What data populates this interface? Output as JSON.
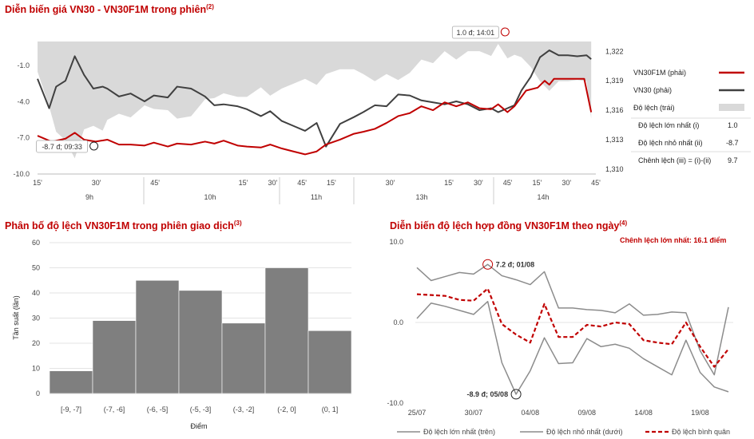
{
  "titles": {
    "intraday": "Diễn biến giá VN30 - VN30F1M trong phiên",
    "intraday_note": "(2)",
    "distribution": "Phân bố độ lệch VN30F1M trong phiên giao dịch",
    "distribution_note": "(3)",
    "daily": "Diễn biến độ lệch hợp đồng VN30F1M theo ngày",
    "daily_note": "(4)"
  },
  "intraday_stats": {
    "max_label": "Độ lệch lớn nhất (i)",
    "max_value": "1.0",
    "min_label": "Độ lệch nhỏ nhất (ii)",
    "min_value": "-8.7",
    "range_label": "Chênh lệch (iii) = (i)-(ii)",
    "range_value": "9.7"
  },
  "daily_max_spread": "Chênh lệch lớn nhất: 16.1 điểm",
  "colors": {
    "title": "#c00000",
    "futures": "#c00000",
    "index": "#404040",
    "basis_area": "#d9d9d9",
    "bars": "#7f7f7f",
    "range_lines": "#8c8c8c"
  },
  "chart_data": [
    {
      "type": "line",
      "title": "Diễn biến giá VN30 - VN30F1M trong phiên",
      "y_left": {
        "ticks": [
          "-1.0",
          "-4.0",
          "-7.0",
          "-10.0"
        ],
        "range": [
          -10,
          1
        ]
      },
      "y_right": {
        "ticks": [
          "1,322",
          "1,319",
          "1,316",
          "1,313",
          "1,310"
        ],
        "range": [
          1309.5,
          1323
        ]
      },
      "x_minute_ticks": [
        "15'",
        "30'",
        "45'",
        "15'",
        "30'",
        "45'",
        "15'",
        "30'",
        "15'",
        "30'",
        "45'",
        "15'",
        "30'",
        "45'"
      ],
      "x_hour_labels": [
        "9h",
        "10h",
        "11h",
        "13h",
        "14h"
      ],
      "x_range": [
        0,
        240
      ],
      "series": [
        {
          "name": "VN30F1M (phải)",
          "axis": "right",
          "x": [
            0,
            6,
            12,
            16,
            20,
            25,
            30,
            35,
            40,
            46,
            50,
            56,
            60,
            66,
            72,
            76,
            80,
            86,
            90,
            96,
            100,
            105,
            110,
            115,
            120,
            124,
            130,
            136,
            140,
            145,
            150,
            155,
            160,
            165,
            170,
            175,
            180,
            185,
            190,
            195,
            198,
            202,
            205,
            210,
            215,
            218,
            220,
            222,
            225,
            230,
            235,
            238
          ],
          "y": [
            1313.4,
            1312.8,
            1313.1,
            1313.7,
            1313.0,
            1312.8,
            1313.0,
            1312.5,
            1312.5,
            1312.4,
            1312.7,
            1312.3,
            1312.6,
            1312.5,
            1312.8,
            1312.6,
            1312.9,
            1312.4,
            1312.3,
            1312.2,
            1312.5,
            1312.1,
            1311.8,
            1311.5,
            1311.8,
            1312.5,
            1313.0,
            1313.6,
            1313.8,
            1314.1,
            1314.7,
            1315.4,
            1315.7,
            1316.4,
            1316.0,
            1316.8,
            1316.4,
            1316.8,
            1316.2,
            1316.1,
            1316.6,
            1315.8,
            1316.4,
            1318.0,
            1318.3,
            1319.0,
            1318.6,
            1319.2,
            1319.2,
            1319.2,
            1319.2,
            1315.8
          ]
        },
        {
          "name": "VN30 (phải)",
          "axis": "right",
          "x": [
            0,
            5,
            8,
            12,
            16,
            20,
            24,
            28,
            30,
            35,
            40,
            46,
            50,
            56,
            60,
            66,
            72,
            76,
            80,
            86,
            90,
            96,
            100,
            105,
            110,
            115,
            120,
            124,
            130,
            136,
            140,
            145,
            150,
            155,
            160,
            165,
            170,
            175,
            180,
            185,
            190,
            195,
            198,
            202,
            205,
            208,
            212,
            216,
            220,
            224,
            228,
            232,
            236,
            238
          ],
          "y": [
            1319.2,
            1316.2,
            1318.4,
            1319.0,
            1321.5,
            1319.6,
            1318.2,
            1318.4,
            1318.2,
            1317.4,
            1317.7,
            1316.9,
            1317.5,
            1317.3,
            1318.4,
            1318.2,
            1317.4,
            1316.5,
            1316.6,
            1316.4,
            1316.1,
            1315.4,
            1315.9,
            1314.9,
            1314.4,
            1313.9,
            1314.7,
            1312.3,
            1314.6,
            1315.3,
            1315.8,
            1316.5,
            1316.4,
            1317.6,
            1317.5,
            1317.0,
            1316.8,
            1316.6,
            1316.9,
            1316.6,
            1316.0,
            1316.2,
            1315.8,
            1316.2,
            1316.5,
            1318.0,
            1319.4,
            1321.4,
            1322.1,
            1321.6,
            1321.6,
            1321.5,
            1321.6,
            1321.2
          ]
        },
        {
          "name": "Độ lệch (trái)",
          "axis": "left",
          "kind": "area",
          "x": [
            0,
            5,
            8,
            12,
            16,
            20,
            24,
            28,
            30,
            35,
            40,
            46,
            50,
            56,
            60,
            66,
            72,
            76,
            80,
            86,
            90,
            96,
            100,
            105,
            110,
            115,
            120,
            124,
            130,
            136,
            140,
            145,
            150,
            155,
            160,
            165,
            170,
            175,
            180,
            185,
            190,
            195,
            198,
            202,
            205,
            208,
            212,
            216,
            220,
            224,
            228,
            232,
            236,
            238
          ],
          "y": [
            -1.5,
            -4.4,
            -6.5,
            -7.2,
            -8.7,
            -6.3,
            -6.0,
            -6.4,
            -5.5,
            -5.0,
            -5.3,
            -4.3,
            -4.6,
            -4.7,
            -5.4,
            -5.2,
            -3.8,
            -3.7,
            -3.3,
            -3.6,
            -3.6,
            -2.8,
            -3.5,
            -2.9,
            -2.5,
            -2.1,
            -2.6,
            -1.7,
            -1.3,
            -1.3,
            -1.7,
            -2.3,
            -1.7,
            -2.2,
            -1.6,
            -0.5,
            -0.8,
            0.2,
            -0.5,
            0.2,
            0.2,
            -0.2,
            0.8,
            -0.4,
            -0.1,
            -0.3,
            -1.1,
            -2.3,
            -3.1,
            -2.3,
            -2.3,
            -2.2,
            -2.3,
            -5.4
          ]
        }
      ],
      "annotations": [
        "1.0 đ; 14:01",
        "-8.7 đ; 09:33"
      ]
    },
    {
      "type": "bar",
      "title": "Phân bố độ lệch VN30F1M trong phiên giao dịch",
      "categories": [
        "[-9, -7]",
        "(-7, -6]",
        "(-6, -5]",
        "(-5, -3]",
        "(-3, -2]",
        "(-2, 0]",
        "(0, 1]"
      ],
      "values": [
        9,
        29,
        45,
        41,
        28,
        50,
        25
      ],
      "ylabel": "Tần suất (lần)",
      "xlabel": "Điểm",
      "ylim": [
        0,
        60
      ],
      "y_ticks": [
        "60",
        "50",
        "40",
        "30",
        "20",
        "10",
        "0"
      ]
    },
    {
      "type": "line",
      "title": "Diễn biến độ lệch hợp đồng VN30F1M theo ngày",
      "y_ticks": [
        "10.0",
        "0.0",
        "-10.0"
      ],
      "ylim": [
        -10,
        10
      ],
      "x_labels": [
        "25/07",
        "30/07",
        "04/08",
        "09/08",
        "14/08",
        "19/08"
      ],
      "series": [
        {
          "name": "Độ lệch lớn nhất (trên)",
          "values": [
            6.8,
            5.2,
            5.7,
            6.2,
            6.0,
            7.2,
            5.8,
            5.3,
            4.7,
            6.3,
            1.8,
            1.8,
            1.6,
            1.5,
            1.2,
            2.3,
            0.9,
            1.0,
            1.3,
            1.2,
            -3.5,
            -6.5,
            1.9
          ]
        },
        {
          "name": "Độ lệch nhỏ nhất (dưới)",
          "values": [
            0.5,
            2.4,
            2.0,
            1.5,
            1.0,
            2.6,
            -5.0,
            -8.9,
            -6.0,
            -1.9,
            -5.1,
            -5.0,
            -2.0,
            -3.0,
            -2.7,
            -3.2,
            -4.5,
            -5.5,
            -6.5,
            -2.2,
            -6.2,
            -8.0,
            -8.6
          ]
        },
        {
          "name": "Độ lệch bình quân",
          "values": [
            3.5,
            3.4,
            3.3,
            2.8,
            2.7,
            4.2,
            -0.2,
            -1.5,
            -2.5,
            2.3,
            -1.8,
            -1.8,
            -0.3,
            -0.5,
            0.0,
            -0.2,
            -2.2,
            -2.5,
            -2.7,
            0.0,
            -3.0,
            -5.5,
            -3.3
          ]
        }
      ],
      "annotations": [
        "7.2 đ; 01/08",
        "-8.9 đ; 05/08"
      ]
    }
  ]
}
